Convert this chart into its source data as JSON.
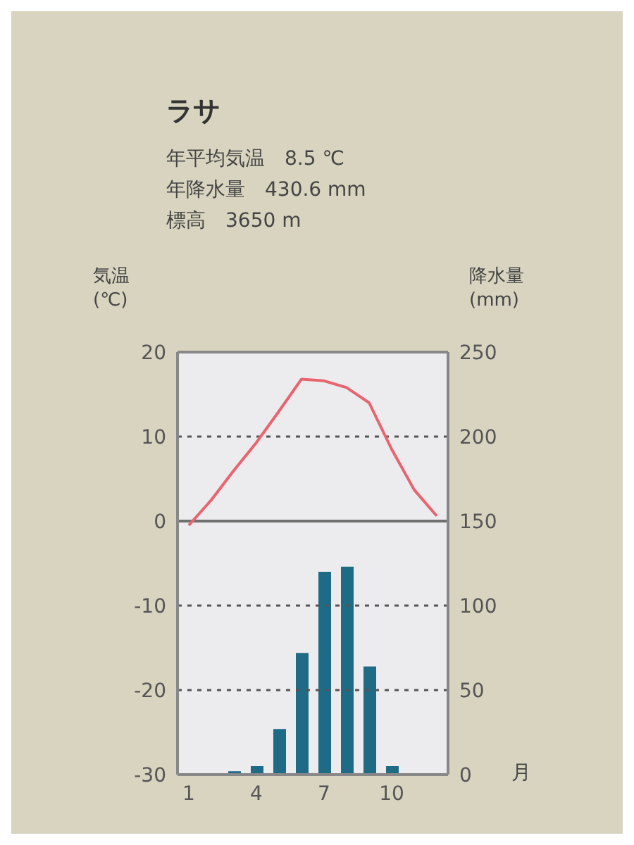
{
  "chart_data": {
    "type": "bar",
    "title": "ラサ",
    "annotations": [
      "年平均気温　8.5 ℃",
      "年降水量　430.6 mm",
      "標高　3650 m"
    ],
    "ylabel": "気温 (℃)",
    "y2label": "降水量 (mm)",
    "xlabel": "月",
    "categories": [
      "1",
      null,
      null,
      "4",
      null,
      null,
      "7",
      null,
      null,
      "10",
      null,
      null
    ],
    "series": [
      {
        "type": "line",
        "color": "#e8646e",
        "values": [
          -0.5,
          2.5,
          6,
          9.3,
          13,
          16.8,
          16.6,
          15.8,
          14,
          8.5,
          3.7,
          0.6
        ]
      },
      {
        "axis": "y2",
        "color": "#1f6b86",
        "values": [
          0,
          0,
          2,
          5,
          27,
          72,
          120,
          123,
          64,
          5,
          0,
          0
        ]
      }
    ],
    "ylim": [
      -30,
      20
    ],
    "yticks": [
      -30,
      -20,
      -10,
      0,
      10,
      20
    ],
    "y2lim": [
      0,
      250
    ],
    "y2ticks": [
      0,
      50,
      100,
      150,
      200,
      250
    ],
    "grid": "y",
    "marker": "none",
    "ref_lines": [
      {
        "axis": "y",
        "value": 0,
        "color": "#707070",
        "line_style": "solid"
      }
    ]
  }
}
